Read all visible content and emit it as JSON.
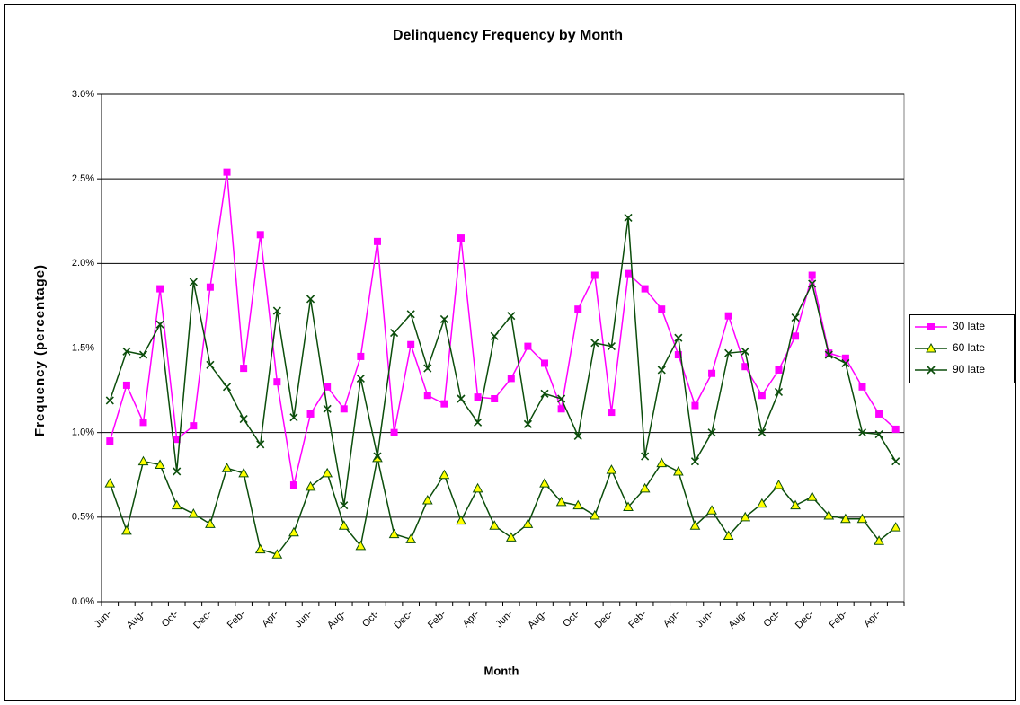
{
  "chart_data": {
    "type": "line",
    "title": "Delinquency Frequency by Month",
    "x_label": "Month",
    "y_label": "Frequency (percentage)",
    "categories": [
      "Jun-",
      null,
      "Aug-",
      null,
      "Oct-",
      null,
      "Dec-",
      null,
      "Feb-",
      null,
      "Apr-",
      null,
      "Jun-",
      null,
      "Aug-",
      null,
      "Oct-",
      null,
      "Dec-",
      null,
      "Feb-",
      null,
      "Apr-",
      null,
      "Jun-",
      null,
      "Aug-",
      null,
      "Oct-",
      null,
      "Dec-",
      null,
      "Feb-",
      null,
      "Apr-",
      null,
      "Jun-",
      null,
      "Aug-",
      null,
      "Oct-",
      null,
      "Dec-",
      null,
      "Feb-",
      null,
      "Apr-",
      null
    ],
    "series": [
      {
        "name": "30 late",
        "color": "#ff00ff",
        "marker": "square",
        "marker_fill": "#ff00ff",
        "values": [
          0.95,
          1.28,
          1.06,
          1.85,
          0.96,
          1.04,
          1.86,
          2.54,
          1.38,
          2.17,
          1.3,
          0.69,
          1.11,
          1.27,
          1.14,
          1.45,
          2.13,
          1.0,
          1.52,
          1.22,
          1.17,
          2.15,
          1.21,
          1.2,
          1.32,
          1.51,
          1.41,
          1.14,
          1.73,
          1.93,
          1.12,
          1.94,
          1.85,
          1.73,
          1.46,
          1.16,
          1.35,
          1.69,
          1.39,
          1.22,
          1.37,
          1.57,
          1.93,
          1.47,
          1.44,
          1.27,
          1.11,
          1.02
        ]
      },
      {
        "name": "60 late",
        "color": "#0b4d0b",
        "marker": "triangle",
        "marker_fill": "#ffff00",
        "values": [
          0.7,
          0.42,
          0.83,
          0.81,
          0.57,
          0.52,
          0.46,
          0.79,
          0.76,
          0.31,
          0.28,
          0.41,
          0.68,
          0.76,
          0.45,
          0.33,
          0.85,
          0.4,
          0.37,
          0.6,
          0.75,
          0.48,
          0.67,
          0.45,
          0.38,
          0.46,
          0.7,
          0.59,
          0.57,
          0.51,
          0.78,
          0.56,
          0.67,
          0.82,
          0.77,
          0.45,
          0.54,
          0.39,
          0.5,
          0.58,
          0.69,
          0.57,
          0.62,
          0.51,
          0.49,
          0.49,
          0.36,
          0.44
        ]
      },
      {
        "name": "90 late",
        "color": "#0b4d0b",
        "marker": "x",
        "marker_fill": "#0b4d0b",
        "values": [
          1.19,
          1.48,
          1.46,
          1.64,
          0.77,
          1.89,
          1.4,
          1.27,
          1.08,
          0.93,
          1.72,
          1.09,
          1.79,
          1.14,
          0.57,
          1.32,
          0.86,
          1.59,
          1.7,
          1.38,
          1.67,
          1.2,
          1.06,
          1.57,
          1.69,
          1.05,
          1.23,
          1.2,
          0.98,
          1.53,
          1.51,
          2.27,
          0.86,
          1.37,
          1.56,
          0.83,
          1.0,
          1.47,
          1.48,
          1.0,
          1.24,
          1.68,
          1.88,
          1.46,
          1.41,
          1.0,
          0.99,
          0.83
        ]
      }
    ],
    "ylim": [
      0,
      3
    ],
    "yticks": [
      {
        "value": 0,
        "label": "0.0%"
      },
      {
        "value": 0.5,
        "label": "0.5%"
      },
      {
        "value": 1,
        "label": "1.0%"
      },
      {
        "value": 1.5,
        "label": "1.5%"
      },
      {
        "value": 2,
        "label": "2.0%"
      },
      {
        "value": 2.5,
        "label": "2.5%"
      },
      {
        "value": 3,
        "label": "3.0%"
      }
    ],
    "grid": true,
    "legend": "right"
  }
}
